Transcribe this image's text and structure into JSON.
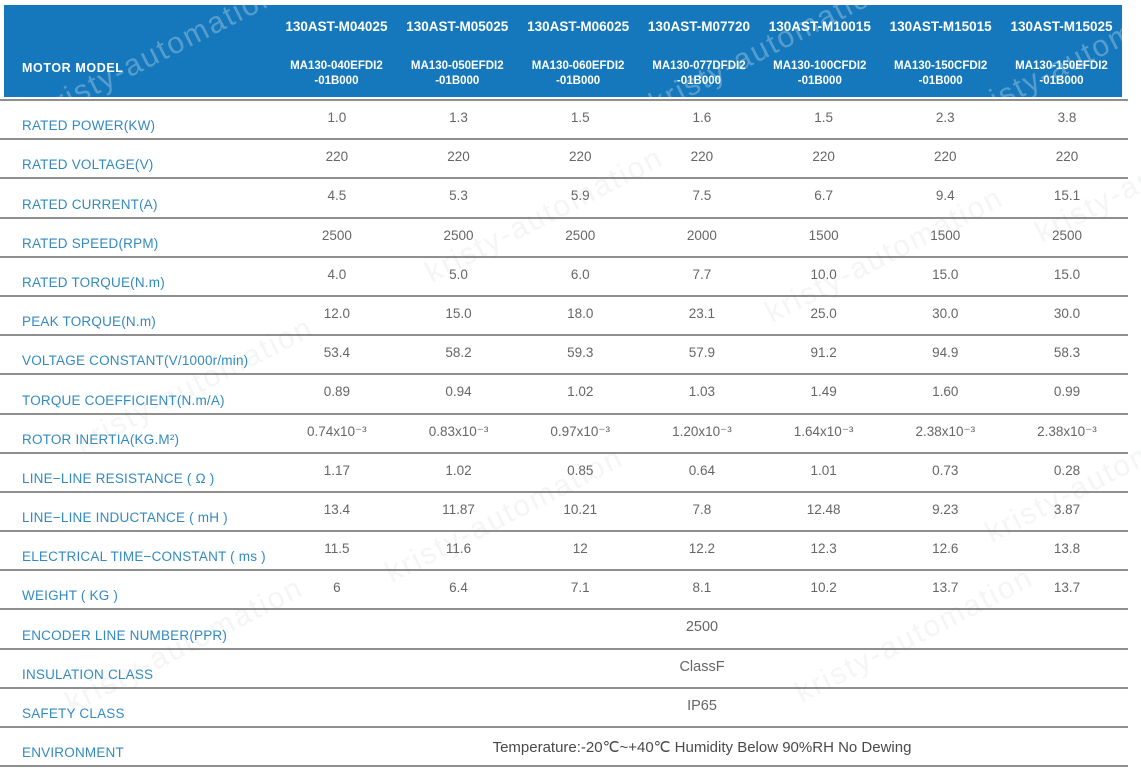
{
  "watermark_text": "kristy-automation",
  "colors": {
    "header_bg": "#1678bc",
    "header_text": "#ffffff",
    "label_text": "#338ac2",
    "value_text": "#666666",
    "grid_line": "#8f8f8f"
  },
  "header": {
    "row_label": "MOTOR MODEL",
    "columns": [
      {
        "model": "130AST-M04025",
        "part_line1": "MA130-040EFDI2",
        "part_line2": "-01B000"
      },
      {
        "model": "130AST-M05025",
        "part_line1": "MA130-050EFDI2",
        "part_line2": "-01B000"
      },
      {
        "model": "130AST-M06025",
        "part_line1": "MA130-060EFDI2",
        "part_line2": "-01B000"
      },
      {
        "model": "130AST-M07720",
        "part_line1": "MA130-077DFDI2",
        "part_line2": "-01B000"
      },
      {
        "model": "130AST-M10015",
        "part_line1": "MA130-100CFDI2",
        "part_line2": "-01B000"
      },
      {
        "model": "130AST-M15015",
        "part_line1": "MA130-150CFDI2",
        "part_line2": "-01B000"
      },
      {
        "model": "130AST-M15025",
        "part_line1": "MA130-150EFDI2",
        "part_line2": "-01B000"
      }
    ]
  },
  "rows": [
    {
      "label": "RATED POWER(KW)",
      "values": [
        "1.0",
        "1.3",
        "1.5",
        "1.6",
        "1.5",
        "2.3",
        "3.8"
      ]
    },
    {
      "label": "RATED VOLTAGE(V)",
      "values": [
        "220",
        "220",
        "220",
        "220",
        "220",
        "220",
        "220"
      ]
    },
    {
      "label": "RATED CURRENT(A)",
      "values": [
        "4.5",
        "5.3",
        "5.9",
        "7.5",
        "6.7",
        "9.4",
        "15.1"
      ]
    },
    {
      "label": "RATED SPEED(RPM)",
      "values": [
        "2500",
        "2500",
        "2500",
        "2000",
        "1500",
        "1500",
        "2500"
      ]
    },
    {
      "label": "RATED TORQUE(N.m)",
      "values": [
        "4.0",
        "5.0",
        "6.0",
        "7.7",
        "10.0",
        "15.0",
        "15.0"
      ]
    },
    {
      "label": "PEAK TORQUE(N.m)",
      "values": [
        "12.0",
        "15.0",
        "18.0",
        "23.1",
        "25.0",
        "30.0",
        "30.0"
      ]
    },
    {
      "label": "VOLTAGE CONSTANT(V/1000r/min)",
      "values": [
        "53.4",
        "58.2",
        "59.3",
        "57.9",
        "91.2",
        "94.9",
        "58.3"
      ]
    },
    {
      "label": "TORQUE COEFFICIENT(N.m/A)",
      "values": [
        "0.89",
        "0.94",
        "1.02",
        "1.03",
        "1.49",
        "1.60",
        "0.99"
      ]
    },
    {
      "label": "ROTOR INERTIA(KG.M²)",
      "values": [
        "0.74x10⁻³",
        "0.83x10⁻³",
        "0.97x10⁻³",
        "1.20x10⁻³",
        "1.64x10⁻³",
        "2.38x10⁻³",
        "2.38x10⁻³"
      ]
    },
    {
      "label": "LINE−LINE RESISTANCE ( Ω )",
      "values": [
        "1.17",
        "1.02",
        "0.85",
        "0.64",
        "1.01",
        "0.73",
        "0.28"
      ]
    },
    {
      "label": "LINE−LINE INDUCTANCE ( mH )",
      "values": [
        "13.4",
        "11.87",
        "10.21",
        "7.8",
        "12.48",
        "9.23",
        "3.87"
      ]
    },
    {
      "label": "ELECTRICAL TIME−CONSTANT ( ms )",
      "values": [
        "11.5",
        "11.6",
        "12",
        "12.2",
        "12.3",
        "12.6",
        "13.8"
      ]
    },
    {
      "label": "WEIGHT ( KG )",
      "values": [
        "6",
        "6.4",
        "7.1",
        "8.1",
        "10.2",
        "13.7",
        "13.7"
      ]
    }
  ],
  "merged_rows": [
    {
      "label": "ENCODER LINE NUMBER(PPR)",
      "value": "2500"
    },
    {
      "label": "INSULATION CLASS",
      "value": "ClassF"
    },
    {
      "label": "SAFETY CLASS",
      "value": "IP65"
    },
    {
      "label": "ENVIRONMENT",
      "value": "Temperature:-20℃~+40℃  Humidity Below 90%RH No Dewing"
    }
  ]
}
